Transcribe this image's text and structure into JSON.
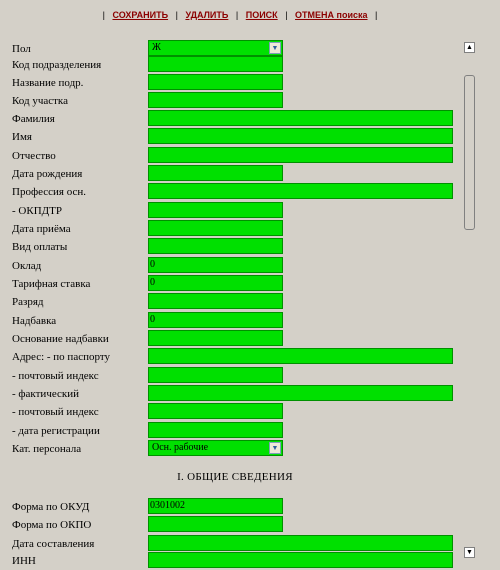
{
  "toolbar": {
    "save": "СОХРАНИТЬ",
    "delete": "УДАЛИТЬ",
    "search": "ПОИСК",
    "cancel_search": "ОТМЕНА поиска",
    "separator": "|"
  },
  "form": {
    "gender": {
      "label": "Пол",
      "value": "Ж"
    },
    "dept_code": {
      "label": "Код подразделения",
      "value": ""
    },
    "dept_name": {
      "label": "Название подр.",
      "value": ""
    },
    "section_code": {
      "label": "Код участка",
      "value": ""
    },
    "surname": {
      "label": "Фамилия",
      "value": ""
    },
    "first_name": {
      "label": "Имя",
      "value": ""
    },
    "patronymic": {
      "label": "Отчество",
      "value": ""
    },
    "birth_date": {
      "label": "Дата рождения",
      "value": ""
    },
    "profession": {
      "label": "Профессия осн.",
      "value": ""
    },
    "okpdtr": {
      "label": "- ОКПДТР",
      "value": ""
    },
    "hire_date": {
      "label": "Дата приёма",
      "value": ""
    },
    "pay_type": {
      "label": "Вид оплаты",
      "value": ""
    },
    "salary": {
      "label": "Оклад",
      "value": "0"
    },
    "tariff_rate": {
      "label": "Тарифная ставка",
      "value": "0"
    },
    "grade": {
      "label": "Разряд",
      "value": ""
    },
    "allowance": {
      "label": "Надбавка",
      "value": "0"
    },
    "allowance_basis": {
      "label": "Основание надбавки",
      "value": ""
    },
    "passport_address": {
      "label": "Адрес: - по паспорту",
      "value": ""
    },
    "postal_index_1": {
      "label": "- почтовый индекс",
      "value": ""
    },
    "actual_address": {
      "label": "- фактический",
      "value": ""
    },
    "postal_index_2": {
      "label": "- почтовый индекс",
      "value": ""
    },
    "registration_date": {
      "label": "- дата регистрации",
      "value": ""
    },
    "staff_category": {
      "label": "Кат. персонала",
      "value": "Осн. рабочие"
    }
  },
  "section": {
    "heading": "I. ОБЩИЕ СВЕДЕНИЯ",
    "okud": {
      "label": "Форма по ОКУД",
      "value": "0301002"
    },
    "okpo": {
      "label": "Форма по ОКПО",
      "value": ""
    },
    "compile_date": {
      "label": "Дата составления",
      "value": ""
    },
    "partial_label": "ИНН"
  },
  "colors": {
    "background": "#d4d0c8",
    "field": "#00e000",
    "link": "#8b0000"
  },
  "icons": {
    "scroll_up": "triangle-up-icon",
    "scroll_down": "triangle-down-icon",
    "dropdown": "chevron-down-icon"
  }
}
